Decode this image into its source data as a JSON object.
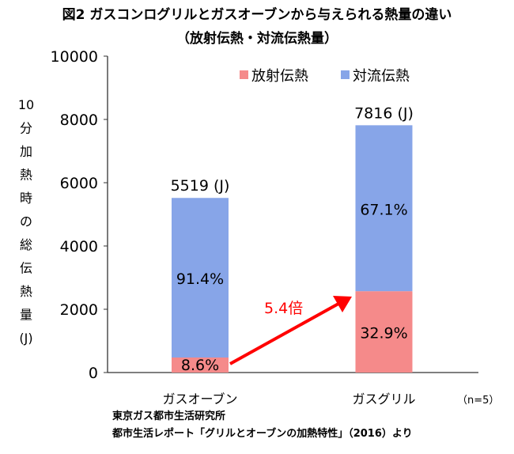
{
  "chart_data": {
    "type": "bar",
    "stacked": true,
    "title": "図2 ガスコンログリルとガスオーブンから与えられる熱量の違い",
    "subtitle": "（放射伝熱・対流伝熱量）",
    "ylabel": "10分加熱時の総伝熱量(J)",
    "ylabel_chars": [
      "10",
      "分",
      "加",
      "熱",
      "時",
      "の",
      "総",
      "伝",
      "熱",
      "量",
      "(J)"
    ],
    "xlabel": "",
    "ylim": [
      0,
      10000
    ],
    "yticks": [
      0,
      2000,
      4000,
      6000,
      8000,
      10000
    ],
    "categories": [
      "ガスオーブン",
      "ガスグリル"
    ],
    "series": [
      {
        "name": "放射伝熱",
        "color": "#f58a8a",
        "values": [
          475,
          2571
        ],
        "labels": [
          "8.6%",
          "32.9%"
        ]
      },
      {
        "name": "対流伝熱",
        "color": "#87a5e8",
        "values": [
          5044,
          5245
        ],
        "labels": [
          "91.4%",
          "67.1%"
        ]
      }
    ],
    "totals": [
      5519,
      7816
    ],
    "total_labels": [
      "5519 (J)",
      "7816 (J)"
    ],
    "legend_position": "top-right",
    "annotation": {
      "text": "5.4倍",
      "color": "#ff0000"
    },
    "note": "（n=5）",
    "grid": false
  },
  "source": {
    "line1": "東京ガス都市生活研究所",
    "line2": "都市生活レポート「グリルとオーブンの加熱特性」（2016）より"
  }
}
